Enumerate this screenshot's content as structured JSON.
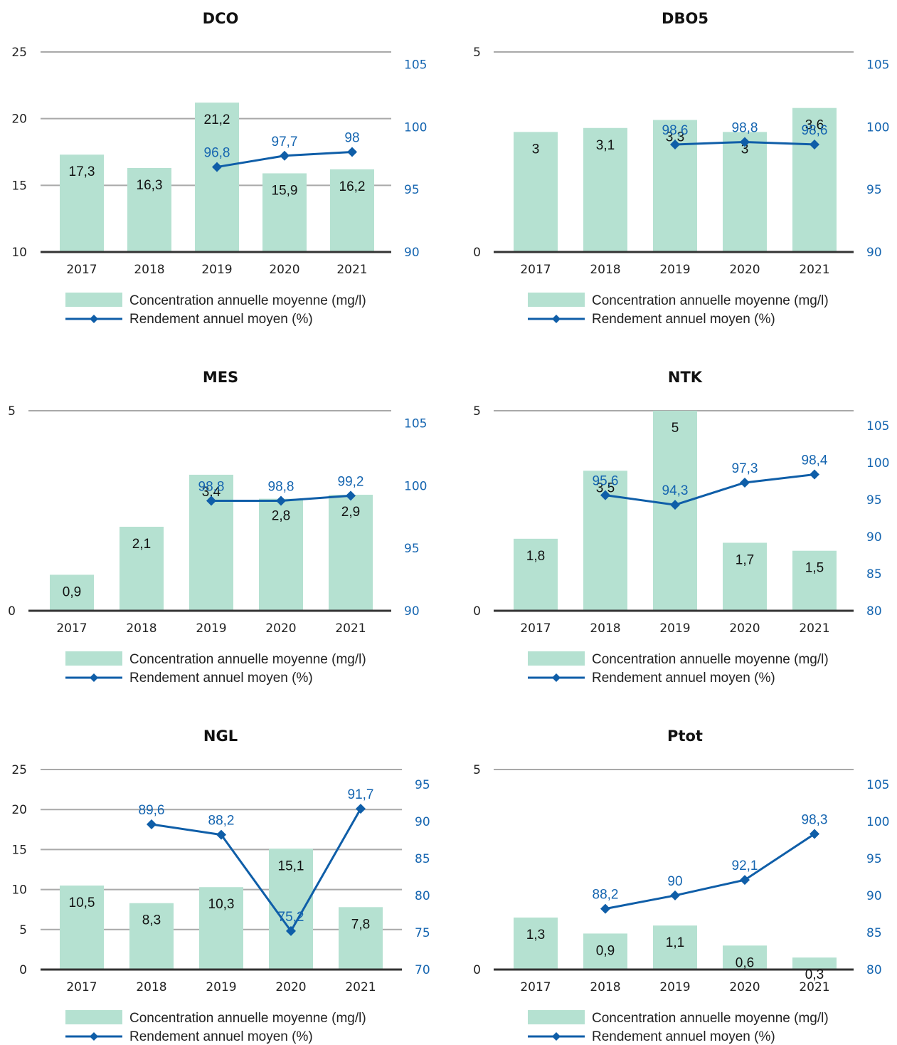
{
  "colors": {
    "bar": "#b5e1d1",
    "line": "#0f5ea8",
    "line_label": "#1565b0",
    "grid": "#a9a9a9",
    "axis": "#333333"
  },
  "legend": {
    "bar_label": "Concentration annuelle moyenne (mg/l)",
    "line_label": "Rendement annuel moyen (%)"
  },
  "chart_data": [
    {
      "type": "bar",
      "title": "DCO",
      "categories": [
        "2017",
        "2018",
        "2019",
        "2020",
        "2021"
      ],
      "left_axis": {
        "min": 10,
        "max": 25,
        "ticks": [
          10,
          15,
          20,
          25
        ]
      },
      "right_axis": {
        "min": 90,
        "max": 106,
        "ticks": [
          90,
          95,
          100,
          105
        ]
      },
      "series": [
        {
          "name": "Concentration annuelle moyenne (mg/l)",
          "kind": "bar",
          "axis": "left",
          "values": [
            17.3,
            16.3,
            21.2,
            15.9,
            16.2
          ],
          "labels": [
            "17,3",
            "16,3",
            "21,2",
            "15,9",
            "16,2"
          ]
        },
        {
          "name": "Rendement annuel moyen (%)",
          "kind": "line",
          "axis": "right",
          "values": [
            null,
            null,
            96.8,
            97.7,
            98
          ],
          "labels": [
            "",
            "",
            "96,8",
            "97,7",
            "98"
          ]
        }
      ]
    },
    {
      "type": "bar",
      "title": "DBO5",
      "categories": [
        "2017",
        "2018",
        "2019",
        "2020",
        "2021"
      ],
      "left_axis": {
        "min": 0,
        "max": 5,
        "ticks": [
          0,
          5
        ]
      },
      "right_axis": {
        "min": 90,
        "max": 106,
        "ticks": [
          90,
          95,
          100,
          105
        ]
      },
      "series": [
        {
          "name": "Concentration annuelle moyenne (mg/l)",
          "kind": "bar",
          "axis": "left",
          "values": [
            3,
            3.1,
            3.3,
            3,
            3.6
          ],
          "labels": [
            "3",
            "3,1",
            "3,3",
            "3",
            "3,6"
          ]
        },
        {
          "name": "Rendement annuel moyen (%)",
          "kind": "line",
          "axis": "right",
          "values": [
            null,
            null,
            98.6,
            98.8,
            98.6
          ],
          "labels": [
            "",
            "",
            "98,6",
            "98,8",
            "98,6"
          ]
        }
      ]
    },
    {
      "type": "bar",
      "title": "MES",
      "categories": [
        "2017",
        "2018",
        "2019",
        "2020",
        "2021"
      ],
      "left_axis": {
        "min": 0,
        "max": 5,
        "ticks": [
          0,
          5
        ]
      },
      "right_axis": {
        "min": 90,
        "max": 106,
        "ticks": [
          90,
          95,
          100,
          105
        ]
      },
      "series": [
        {
          "name": "Concentration annuelle moyenne (mg/l)",
          "kind": "bar",
          "axis": "left",
          "values": [
            0.9,
            2.1,
            3.4,
            2.8,
            2.9
          ],
          "labels": [
            "0,9",
            "2,1",
            "3,4",
            "2,8",
            "2,9"
          ]
        },
        {
          "name": "Rendement annuel moyen (%)",
          "kind": "line",
          "axis": "right",
          "values": [
            null,
            null,
            98.8,
            98.8,
            99.2
          ],
          "labels": [
            "",
            "",
            "98,8",
            "98,8",
            "99,2"
          ]
        }
      ]
    },
    {
      "type": "bar",
      "title": "NTK",
      "categories": [
        "2017",
        "2018",
        "2019",
        "2020",
        "2021"
      ],
      "left_axis": {
        "min": 0,
        "max": 5,
        "ticks": [
          0,
          5
        ]
      },
      "right_axis": {
        "min": 80,
        "max": 107,
        "ticks": [
          80,
          85,
          90,
          95,
          100,
          105
        ]
      },
      "series": [
        {
          "name": "Concentration annuelle moyenne (mg/l)",
          "kind": "bar",
          "axis": "left",
          "values": [
            1.8,
            3.5,
            5,
            1.7,
            1.5
          ],
          "labels": [
            "1,8",
            "3,5",
            "5",
            "1,7",
            "1,5"
          ]
        },
        {
          "name": "Rendement annuel moyen (%)",
          "kind": "line",
          "axis": "right",
          "values": [
            null,
            95.6,
            94.3,
            97.3,
            98.4
          ],
          "labels": [
            "",
            "95,6",
            "94,3",
            "97,3",
            "98,4"
          ]
        }
      ]
    },
    {
      "type": "bar",
      "title": "NGL",
      "categories": [
        "2017",
        "2018",
        "2019",
        "2020",
        "2021"
      ],
      "left_axis": {
        "min": 0,
        "max": 25,
        "ticks": [
          0,
          5,
          10,
          15,
          20,
          25
        ]
      },
      "right_axis": {
        "min": 70,
        "max": 97,
        "ticks": [
          70,
          75,
          80,
          85,
          90,
          95
        ]
      },
      "series": [
        {
          "name": "Concentration annuelle moyenne (mg/l)",
          "kind": "bar",
          "axis": "left",
          "values": [
            10.5,
            8.3,
            10.3,
            15.1,
            7.8
          ],
          "labels": [
            "10,5",
            "8,3",
            "10,3",
            "15,1",
            "7,8"
          ]
        },
        {
          "name": "Rendement annuel moyen (%)",
          "kind": "line",
          "axis": "right",
          "values": [
            null,
            89.6,
            88.2,
            75.2,
            91.7
          ],
          "labels": [
            "",
            "89,6",
            "88,2",
            "75,2",
            "91,7"
          ]
        }
      ]
    },
    {
      "type": "bar",
      "title": "Ptot",
      "categories": [
        "2017",
        "2018",
        "2019",
        "2020",
        "2021"
      ],
      "left_axis": {
        "min": 0,
        "max": 5,
        "ticks": [
          0,
          5
        ]
      },
      "right_axis": {
        "min": 80,
        "max": 107,
        "ticks": [
          80,
          85,
          90,
          95,
          100,
          105
        ]
      },
      "series": [
        {
          "name": "Concentration annuelle moyenne (mg/l)",
          "kind": "bar",
          "axis": "left",
          "values": [
            1.3,
            0.9,
            1.1,
            0.6,
            0.3
          ],
          "labels": [
            "1,3",
            "0,9",
            "1,1",
            "0,6",
            "0,3"
          ]
        },
        {
          "name": "Rendement annuel moyen (%)",
          "kind": "line",
          "axis": "right",
          "values": [
            null,
            88.2,
            90,
            92.1,
            98.3
          ],
          "labels": [
            "",
            "88,2",
            "90",
            "92,1",
            "98,3"
          ]
        }
      ]
    }
  ]
}
